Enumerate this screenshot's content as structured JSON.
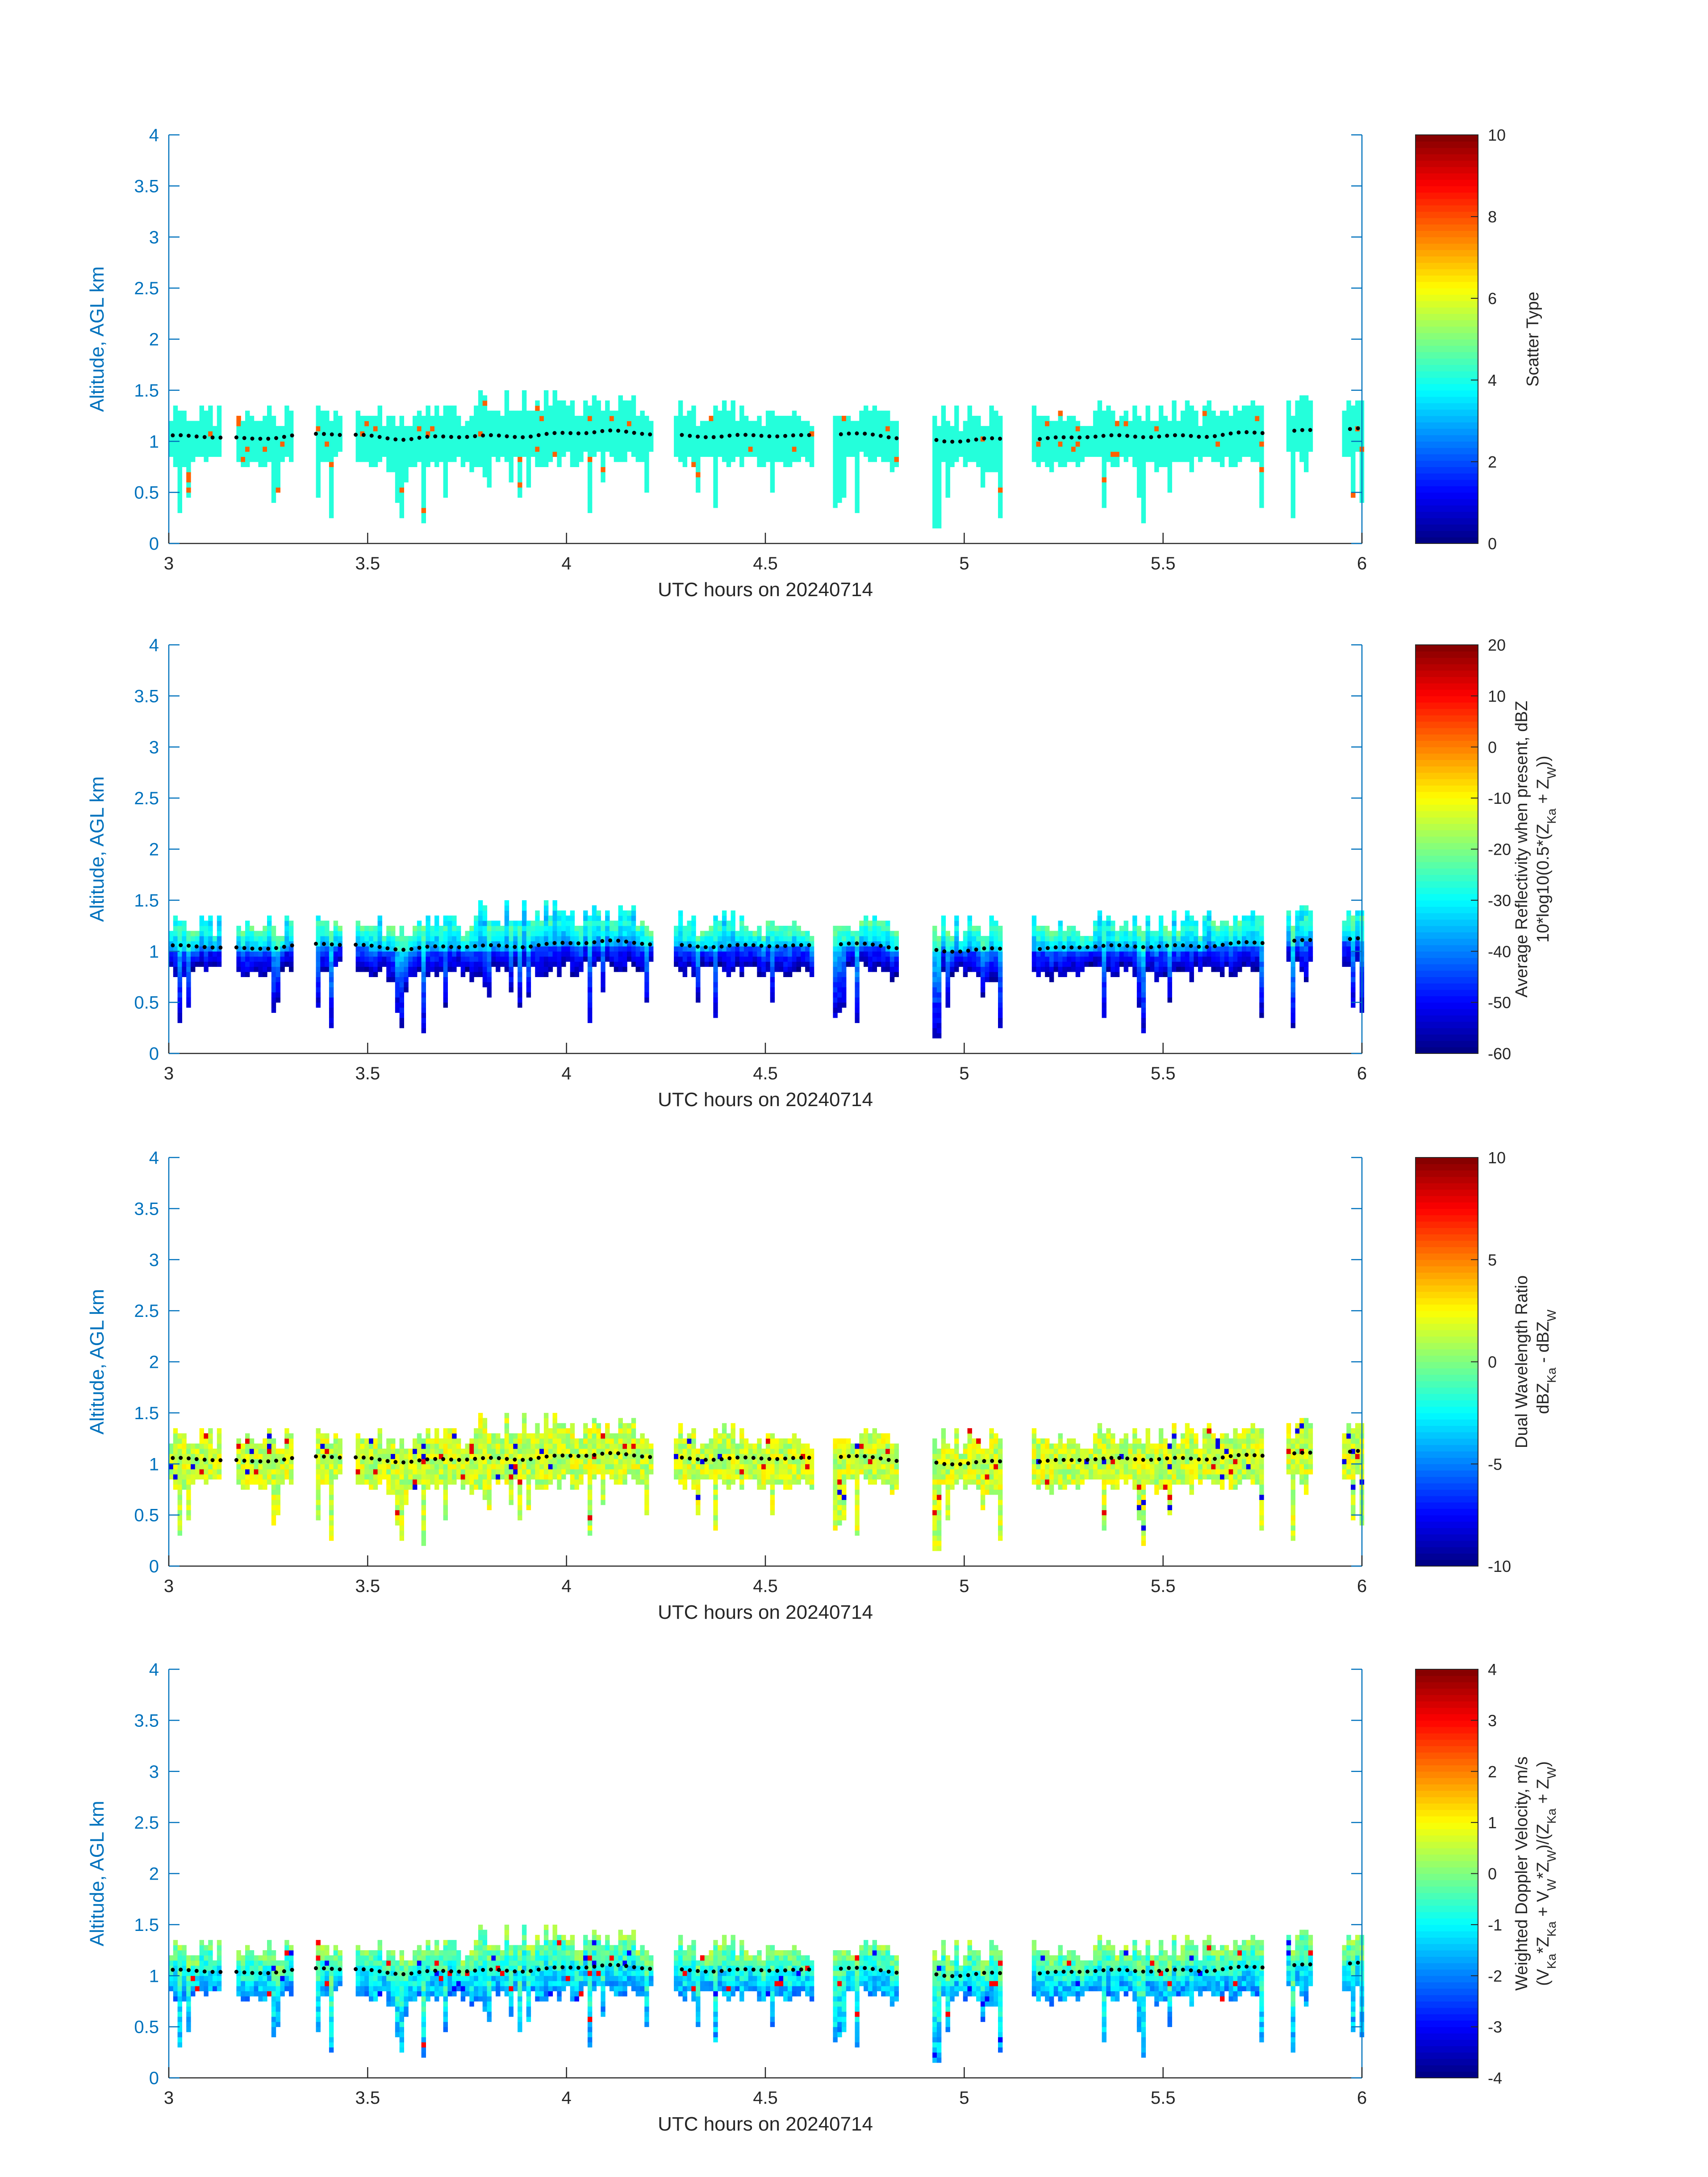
{
  "figure": {
    "panels": [
      {
        "id": "scatter-type",
        "ylabel": "Altitude, AGL km",
        "xlabel": "UTC hours on 20240714",
        "colorbar_label_lines": [
          "Scatter Type"
        ],
        "colorbar_ticks": [
          "0",
          "2",
          "4",
          "6",
          "8",
          "10"
        ]
      },
      {
        "id": "reflectivity",
        "ylabel": "Altitude, AGL km",
        "xlabel": "UTC hours on 20240714",
        "colorbar_label_lines": [
          "Average Reflectivity when present, dBZ",
          "10*log10(0.5*(Z_Ka + Z_W))"
        ],
        "colorbar_ticks": [
          "-60",
          "-50",
          "-40",
          "-30",
          "-20",
          "-10",
          "0",
          "10",
          "20"
        ]
      },
      {
        "id": "dwr",
        "ylabel": "Altitude, AGL km",
        "xlabel": "UTC hours on 20240714",
        "colorbar_label_lines": [
          "Dual Wavelength Ratio",
          "dBZ_Ka - dBZ_W"
        ],
        "colorbar_ticks": [
          "-10",
          "-5",
          "0",
          "5",
          "10"
        ]
      },
      {
        "id": "doppler",
        "ylabel": "Altitude, AGL km",
        "xlabel": "UTC hours on 20240714",
        "colorbar_label_lines": [
          "Weighted Doppler Velocity, m/s",
          "(V_Ka*Z_Ka + V_W*Z_W)/(Z_Ka + Z_W)"
        ],
        "colorbar_ticks": [
          "-4",
          "-3",
          "-2",
          "-1",
          "0",
          "1",
          "2",
          "3",
          "4"
        ]
      }
    ]
  },
  "chart_data": [
    {
      "type": "heatmap",
      "title": "",
      "xlabel": "UTC hours on 20240714",
      "ylabel": "Altitude, AGL km",
      "colorbar_label": "Scatter Type",
      "xlim": [
        3,
        6
      ],
      "ylim": [
        0,
        4
      ],
      "clim": [
        0,
        10
      ],
      "colormap": "jet",
      "x_ticks": [
        "3",
        "3.5",
        "4",
        "4.5",
        "5",
        "5.5",
        "6"
      ],
      "y_ticks": [
        "0",
        "0.5",
        "1",
        "1.5",
        "2",
        "2.5",
        "3",
        "3.5",
        "4"
      ],
      "colorbar_ticks": [
        "0",
        "2",
        "4",
        "6",
        "8",
        "10"
      ],
      "cloud_segments_utc_h": [
        [
          3.0,
          3.13
        ],
        [
          3.17,
          3.31
        ],
        [
          3.37,
          3.43
        ],
        [
          3.47,
          4.21
        ],
        [
          4.27,
          4.62
        ],
        [
          4.67,
          4.83
        ],
        [
          4.92,
          5.09
        ],
        [
          5.17,
          5.75
        ],
        [
          5.81,
          5.87
        ],
        [
          5.95,
          6.0
        ]
      ],
      "dominant_value": 4.1,
      "dominant_color": "#19FFE6",
      "secondary_value": 7.8,
      "secondary_color": "#EA4A17",
      "cloud_base_markers_km": {
        "x": [
          3.02,
          3.1,
          3.2,
          3.3,
          3.4,
          3.5,
          3.6,
          3.7,
          3.8,
          3.9,
          4.0,
          4.1,
          4.2,
          4.3,
          4.4,
          4.5,
          4.6,
          4.7,
          4.8,
          4.95,
          5.05,
          5.2,
          5.3,
          5.4,
          5.5,
          5.6,
          5.7,
          5.85,
          5.97
        ],
        "y": [
          1.05,
          1.05,
          1.02,
          1.05,
          1.08,
          1.05,
          1.02,
          1.05,
          1.05,
          1.05,
          1.08,
          1.1,
          1.08,
          1.05,
          1.05,
          1.06,
          1.05,
          1.08,
          1.05,
          1.0,
          1.02,
          1.02,
          1.05,
          1.05,
          1.05,
          1.05,
          1.08,
          1.1,
          1.12
        ]
      }
    },
    {
      "type": "heatmap",
      "title": "",
      "xlabel": "UTC hours on 20240714",
      "ylabel": "Altitude, AGL km",
      "colorbar_label": "Average Reflectivity when present, dBZ 10*log10(0.5*(Z_Ka + Z_W))",
      "xlim": [
        3,
        6
      ],
      "ylim": [
        0,
        4
      ],
      "clim": [
        -60,
        20
      ],
      "colormap": "jet",
      "x_ticks": [
        "3",
        "3.5",
        "4",
        "4.5",
        "5",
        "5.5",
        "6"
      ],
      "y_ticks": [
        "0",
        "0.5",
        "1",
        "1.5",
        "2",
        "2.5",
        "3",
        "3.5",
        "4"
      ],
      "colorbar_ticks": [
        "-60",
        "-50",
        "-40",
        "-30",
        "-20",
        "-10",
        "0",
        "10",
        "20"
      ],
      "cloud_segments_utc_h": [
        [
          3.0,
          3.13
        ],
        [
          3.17,
          3.31
        ],
        [
          3.37,
          3.43
        ],
        [
          3.47,
          4.21
        ],
        [
          4.27,
          4.62
        ],
        [
          4.67,
          4.83
        ],
        [
          4.92,
          5.09
        ],
        [
          5.17,
          5.75
        ],
        [
          5.81,
          5.87
        ],
        [
          5.95,
          6.0
        ]
      ],
      "value_range_in_cloud_dbz": [
        -60,
        -30
      ],
      "cloud_base_markers_km": {
        "x": [
          3.02,
          3.1,
          3.2,
          3.3,
          3.4,
          3.5,
          3.6,
          3.7,
          3.8,
          3.9,
          4.0,
          4.1,
          4.2,
          4.3,
          4.4,
          4.5,
          4.6,
          4.7,
          4.8,
          4.95,
          5.05,
          5.2,
          5.3,
          5.4,
          5.5,
          5.6,
          5.7,
          5.85,
          5.97
        ],
        "y": [
          1.05,
          1.05,
          1.02,
          1.05,
          1.08,
          1.05,
          1.02,
          1.05,
          1.05,
          1.05,
          1.08,
          1.1,
          1.08,
          1.05,
          1.05,
          1.06,
          1.05,
          1.08,
          1.05,
          1.0,
          1.02,
          1.02,
          1.05,
          1.05,
          1.05,
          1.05,
          1.08,
          1.1,
          1.12
        ]
      }
    },
    {
      "type": "heatmap",
      "title": "",
      "xlabel": "UTC hours on 20240714",
      "ylabel": "Altitude, AGL km",
      "colorbar_label": "Dual Wavelength Ratio dBZ_Ka - dBZ_W",
      "xlim": [
        3,
        6
      ],
      "ylim": [
        0,
        4
      ],
      "clim": [
        -10,
        10
      ],
      "colormap": "jet",
      "x_ticks": [
        "3",
        "3.5",
        "4",
        "4.5",
        "5",
        "5.5",
        "6"
      ],
      "y_ticks": [
        "0",
        "0.5",
        "1",
        "1.5",
        "2",
        "2.5",
        "3",
        "3.5",
        "4"
      ],
      "colorbar_ticks": [
        "-10",
        "-5",
        "0",
        "5",
        "10"
      ],
      "cloud_segments_utc_h": [
        [
          3.0,
          3.13
        ],
        [
          3.17,
          3.31
        ],
        [
          3.37,
          3.43
        ],
        [
          3.47,
          4.21
        ],
        [
          4.27,
          4.62
        ],
        [
          4.67,
          4.83
        ],
        [
          4.92,
          5.09
        ],
        [
          5.17,
          5.75
        ],
        [
          5.81,
          5.87
        ],
        [
          5.95,
          6.0
        ]
      ],
      "value_range_in_cloud_db": [
        -2,
        4
      ],
      "cloud_base_markers_km": {
        "x": [
          3.02,
          3.1,
          3.2,
          3.3,
          3.4,
          3.5,
          3.6,
          3.7,
          3.8,
          3.9,
          4.0,
          4.1,
          4.2,
          4.3,
          4.4,
          4.5,
          4.6,
          4.7,
          4.8,
          4.95,
          5.05,
          5.2,
          5.3,
          5.4,
          5.5,
          5.6,
          5.7,
          5.85,
          5.97
        ],
        "y": [
          1.05,
          1.05,
          1.02,
          1.05,
          1.08,
          1.05,
          1.02,
          1.05,
          1.05,
          1.05,
          1.08,
          1.1,
          1.08,
          1.05,
          1.05,
          1.06,
          1.05,
          1.08,
          1.05,
          1.0,
          1.02,
          1.02,
          1.05,
          1.05,
          1.05,
          1.05,
          1.08,
          1.1,
          1.12
        ]
      }
    },
    {
      "type": "heatmap",
      "title": "",
      "xlabel": "UTC hours on 20240714",
      "ylabel": "Altitude, AGL km",
      "colorbar_label": "Weighted Doppler Velocity, m/s (V_Ka*Z_Ka + V_W*Z_W)/(Z_Ka + Z_W)",
      "xlim": [
        3,
        6
      ],
      "ylim": [
        0,
        4
      ],
      "clim": [
        -4,
        4
      ],
      "colormap": "jet",
      "x_ticks": [
        "3",
        "3.5",
        "4",
        "4.5",
        "5",
        "5.5",
        "6"
      ],
      "y_ticks": [
        "0",
        "0.5",
        "1",
        "1.5",
        "2",
        "2.5",
        "3",
        "3.5",
        "4"
      ],
      "colorbar_ticks": [
        "-4",
        "-3",
        "-2",
        "-1",
        "0",
        "1",
        "2",
        "3",
        "4"
      ],
      "cloud_segments_utc_h": [
        [
          3.0,
          3.13
        ],
        [
          3.17,
          3.31
        ],
        [
          3.37,
          3.43
        ],
        [
          3.47,
          4.21
        ],
        [
          4.27,
          4.62
        ],
        [
          4.67,
          4.83
        ],
        [
          4.92,
          5.09
        ],
        [
          5.17,
          5.75
        ],
        [
          5.81,
          5.87
        ],
        [
          5.95,
          6.0
        ]
      ],
      "value_range_in_cloud_ms": [
        -1.8,
        0.8
      ],
      "cloud_base_markers_km": {
        "x": [
          3.02,
          3.1,
          3.2,
          3.3,
          3.4,
          3.5,
          3.6,
          3.7,
          3.8,
          3.9,
          4.0,
          4.1,
          4.2,
          4.3,
          4.4,
          4.5,
          4.6,
          4.7,
          4.8,
          4.95,
          5.05,
          5.2,
          5.3,
          5.4,
          5.5,
          5.6,
          5.7,
          5.85,
          5.97
        ],
        "y": [
          1.05,
          1.05,
          1.02,
          1.05,
          1.08,
          1.05,
          1.02,
          1.05,
          1.05,
          1.05,
          1.08,
          1.1,
          1.08,
          1.05,
          1.05,
          1.06,
          1.05,
          1.08,
          1.05,
          1.0,
          1.02,
          1.02,
          1.05,
          1.05,
          1.05,
          1.05,
          1.08,
          1.1,
          1.12
        ]
      }
    }
  ]
}
